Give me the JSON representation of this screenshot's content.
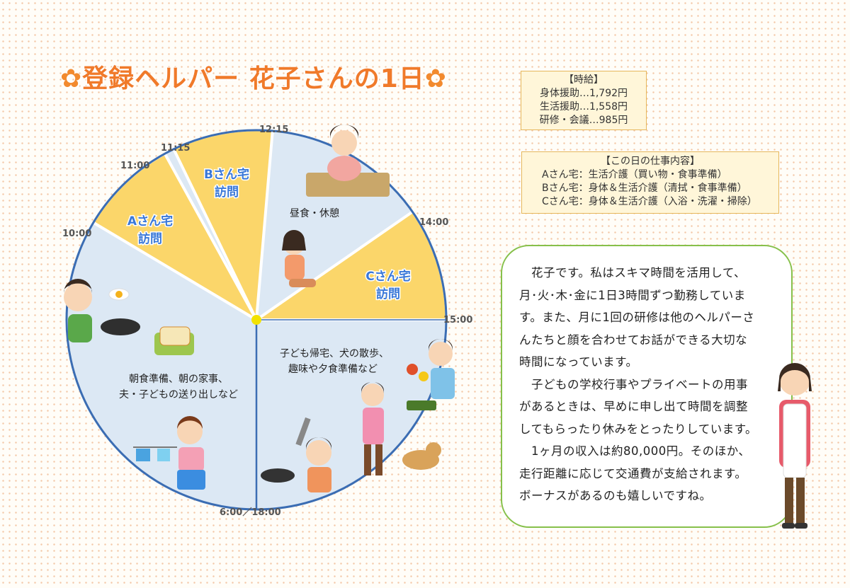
{
  "title": {
    "flower_left": "✿",
    "text": "登録ヘルパー 花子さんの1日",
    "flower_right": "✿"
  },
  "wage_box": {
    "heading": "【時給】",
    "lines": [
      "身体援助…1,792円",
      "生活援助…1,558円",
      "研修・会議…985円"
    ]
  },
  "work_box": {
    "heading": "【この日の仕事内容】",
    "lines": [
      "Aさん宅：生活介護（買い物・食事準備）",
      "Bさん宅：身体＆生活介護（清拭・食事準備）",
      "Cさん宅：身体＆生活介護（入浴・洗濯・掃除）"
    ]
  },
  "clock": {
    "times": [
      "12:15",
      "11:15",
      "11:00",
      "10:00",
      "14:00",
      "15:00",
      "6:00／18:00"
    ],
    "segments": {
      "a_visit": [
        "Aさん宅",
        "訪問"
      ],
      "b_visit": [
        "Bさん宅",
        "訪問"
      ],
      "c_visit": [
        "Cさん宅",
        "訪問"
      ],
      "lunch": "昼食・休憩",
      "evening": [
        "子ども帰宅、犬の散歩、",
        "趣味や夕食準備など"
      ],
      "morning": [
        "朝食準備、朝の家事、",
        "夫・子どもの送り出しなど"
      ]
    }
  },
  "speech": {
    "paragraphs": [
      [
        "　花子です。私はスキマ時間を活用して、",
        "月･火･木･金に1日3時間ずつ勤務していま",
        "す。また、月に1回の研修は他のヘルパーさ",
        "んたちと顔を合わせてお話ができる大切な",
        "時間になっています。"
      ],
      [
        "　子どもの学校行事やプライベートの用事",
        "があるときは、早めに申し出て時間を調整",
        "してもらったり休みをとったりしています。"
      ],
      [
        "　1ヶ月の収入は約80,000円。そのほか、",
        "走行距離に応じて交通費が支給されます。",
        "ボーナスがあるのも嬉しいですね。"
      ]
    ]
  },
  "colors": {
    "title": "#f07a2a",
    "visit_segment": "#fbd66a",
    "other_segment": "#dce8f4",
    "clock_border": "#3b6db3",
    "visit_label": "#3a78d8",
    "speech_border": "#86c04a"
  }
}
